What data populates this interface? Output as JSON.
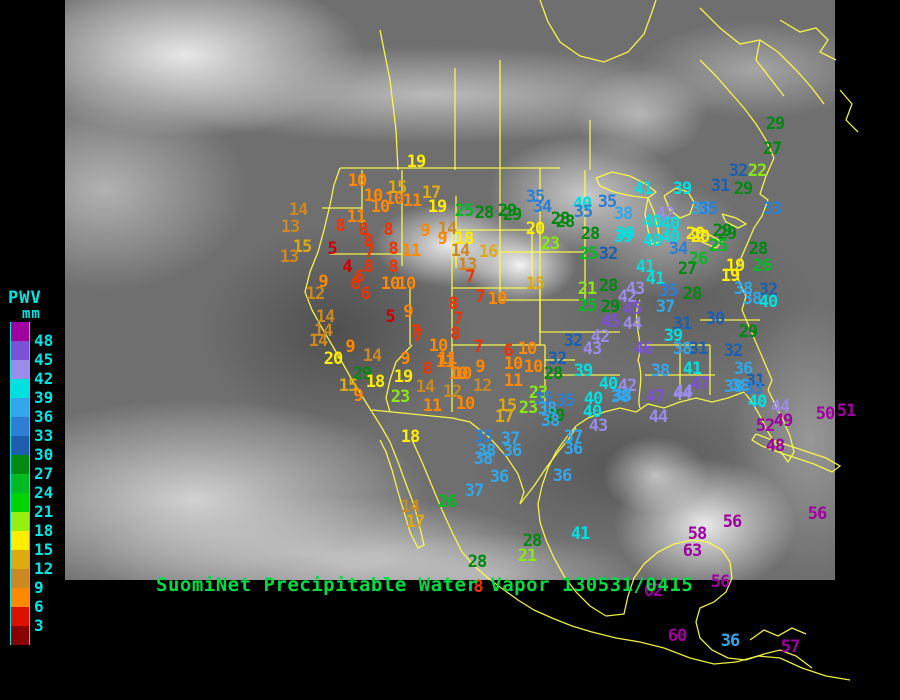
{
  "title": {
    "text": "SuomiNet Precipitable Water Vapor 130531/0415"
  },
  "legend": {
    "heading": "PWV",
    "units": "mm",
    "labels": [
      48,
      45,
      42,
      39,
      36,
      33,
      30,
      27,
      24,
      21,
      18,
      15,
      12,
      9,
      6,
      3
    ],
    "box_colors": [
      "#a000a0",
      "#7b52d4",
      "#9a8ce8",
      "#00e0e0",
      "#33a7ea",
      "#2d7fd4",
      "#1c5fae",
      "#008811",
      "#00bb22",
      "#00d400",
      "#99ee11",
      "#ffee00",
      "#ddaa11",
      "#cc8822",
      "#ff8800",
      "#dd1100",
      "#880000"
    ],
    "text_color": "#00e5e5"
  },
  "scale_stops": [
    {
      "min": 48,
      "color": "#a000a0"
    },
    {
      "min": 45,
      "color": "#7b52d4"
    },
    {
      "min": 42,
      "color": "#9a8ce8"
    },
    {
      "min": 39,
      "color": "#00e0e0"
    },
    {
      "min": 36,
      "color": "#33a7ea"
    },
    {
      "min": 33,
      "color": "#2d7fd4"
    },
    {
      "min": 30,
      "color": "#1c5fae"
    },
    {
      "min": 27,
      "color": "#008811"
    },
    {
      "min": 24,
      "color": "#00bb22"
    },
    {
      "min": 21,
      "color": "#8ae811"
    },
    {
      "min": 18,
      "color": "#ffee00"
    },
    {
      "min": 15,
      "color": "#ddaa11"
    },
    {
      "min": 12,
      "color": "#cc8822"
    },
    {
      "min": 9,
      "color": "#ff8800"
    },
    {
      "min": 6,
      "color": "#ee3300"
    },
    {
      "min": 0,
      "color": "#cc0000"
    }
  ],
  "map_colors": {
    "coastline": "#ffff44",
    "title_green": "#00dd44",
    "background": "#000000"
  },
  "stations": [
    [
      357,
      182,
      10
    ],
    [
      373,
      197,
      10
    ],
    [
      394,
      200,
      10
    ],
    [
      412,
      202,
      11
    ],
    [
      397,
      189,
      15
    ],
    [
      431,
      194,
      17
    ],
    [
      437,
      208,
      19
    ],
    [
      464,
      212,
      25
    ],
    [
      484,
      214,
      28
    ],
    [
      512,
      216,
      29
    ],
    [
      416,
      163,
      19
    ],
    [
      298,
      211,
      14
    ],
    [
      290,
      228,
      13
    ],
    [
      340,
      227,
      8
    ],
    [
      356,
      218,
      11
    ],
    [
      363,
      231,
      8
    ],
    [
      388,
      231,
      8
    ],
    [
      380,
      208,
      10
    ],
    [
      425,
      232,
      9
    ],
    [
      447,
      230,
      14
    ],
    [
      302,
      248,
      15
    ],
    [
      332,
      250,
      5
    ],
    [
      289,
      258,
      13
    ],
    [
      368,
      242,
      8
    ],
    [
      369,
      253,
      7
    ],
    [
      393,
      250,
      8
    ],
    [
      411,
      252,
      11
    ],
    [
      442,
      240,
      9
    ],
    [
      464,
      240,
      18
    ],
    [
      460,
      252,
      14
    ],
    [
      488,
      253,
      16
    ],
    [
      467,
      266,
      13
    ],
    [
      470,
      278,
      7
    ],
    [
      347,
      268,
      4
    ],
    [
      359,
      278,
      6
    ],
    [
      368,
      268,
      8
    ],
    [
      393,
      268,
      8
    ],
    [
      390,
      285,
      10
    ],
    [
      406,
      285,
      10
    ],
    [
      323,
      283,
      9
    ],
    [
      315,
      295,
      12
    ],
    [
      355,
      285,
      6
    ],
    [
      365,
      295,
      6
    ],
    [
      325,
      318,
      14
    ],
    [
      390,
      318,
      5
    ],
    [
      408,
      313,
      9
    ],
    [
      323,
      332,
      14
    ],
    [
      318,
      342,
      14
    ],
    [
      415,
      333,
      7
    ],
    [
      453,
      305,
      8
    ],
    [
      458,
      320,
      7
    ],
    [
      480,
      298,
      7
    ],
    [
      497,
      300,
      10
    ],
    [
      350,
      348,
      9
    ],
    [
      333,
      360,
      20
    ],
    [
      372,
      357,
      14
    ],
    [
      362,
      375,
      29
    ],
    [
      348,
      387,
      15
    ],
    [
      375,
      383,
      18
    ],
    [
      403,
      378,
      19
    ],
    [
      405,
      360,
      9
    ],
    [
      427,
      370,
      8
    ],
    [
      425,
      388,
      14
    ],
    [
      400,
      398,
      23
    ],
    [
      432,
      407,
      11
    ],
    [
      358,
      397,
      9
    ],
    [
      438,
      347,
      10
    ],
    [
      447,
      360,
      11
    ],
    [
      458,
      375,
      10
    ],
    [
      480,
      368,
      9
    ],
    [
      482,
      387,
      12
    ],
    [
      465,
      405,
      10
    ],
    [
      418,
      337,
      7
    ],
    [
      455,
      335,
      8
    ],
    [
      478,
      348,
      7
    ],
    [
      508,
      352,
      6
    ],
    [
      527,
      350,
      10
    ],
    [
      445,
      363,
      11
    ],
    [
      462,
      375,
      10
    ],
    [
      513,
      365,
      10
    ],
    [
      533,
      368,
      10
    ],
    [
      513,
      382,
      11
    ],
    [
      452,
      393,
      12
    ],
    [
      507,
      407,
      15
    ],
    [
      538,
      394,
      23
    ],
    [
      528,
      409,
      23
    ],
    [
      504,
      418,
      17
    ],
    [
      555,
      417,
      29
    ],
    [
      553,
      375,
      28
    ],
    [
      557,
      360,
      32
    ],
    [
      573,
      342,
      32
    ],
    [
      410,
      438,
      18
    ],
    [
      507,
      212,
      29
    ],
    [
      535,
      198,
      35
    ],
    [
      542,
      208,
      34
    ],
    [
      560,
      220,
      28
    ],
    [
      535,
      230,
      20
    ],
    [
      550,
      245,
      23
    ],
    [
      582,
      205,
      40
    ],
    [
      583,
      213,
      35
    ],
    [
      607,
      203,
      35
    ],
    [
      623,
      215,
      38
    ],
    [
      643,
      190,
      41
    ],
    [
      682,
      190,
      39
    ],
    [
      665,
      215,
      42
    ],
    [
      625,
      235,
      39
    ],
    [
      700,
      210,
      36
    ],
    [
      565,
      223,
      28
    ],
    [
      590,
      235,
      28
    ],
    [
      623,
      238,
      39
    ],
    [
      652,
      223,
      40
    ],
    [
      670,
      225,
      40
    ],
    [
      652,
      242,
      40
    ],
    [
      670,
      238,
      40
    ],
    [
      695,
      235,
      20
    ],
    [
      722,
      232,
      29
    ],
    [
      678,
      250,
      34
    ],
    [
      588,
      255,
      25
    ],
    [
      608,
      255,
      32
    ],
    [
      698,
      260,
      26
    ],
    [
      687,
      270,
      27
    ],
    [
      645,
      268,
      41
    ],
    [
      655,
      280,
      41
    ],
    [
      735,
      267,
      19
    ],
    [
      730,
      277,
      19
    ],
    [
      587,
      290,
      21
    ],
    [
      608,
      287,
      28
    ],
    [
      635,
      290,
      43
    ],
    [
      627,
      298,
      42
    ],
    [
      668,
      292,
      35
    ],
    [
      692,
      295,
      28
    ],
    [
      587,
      307,
      25
    ],
    [
      610,
      308,
      29
    ],
    [
      632,
      310,
      45
    ],
    [
      665,
      308,
      37
    ],
    [
      535,
      285,
      15
    ],
    [
      610,
      323,
      45
    ],
    [
      632,
      325,
      44
    ],
    [
      600,
      338,
      42
    ],
    [
      592,
      350,
      43
    ],
    [
      583,
      372,
      39
    ],
    [
      608,
      385,
      40
    ],
    [
      627,
      387,
      42
    ],
    [
      622,
      397,
      38
    ],
    [
      682,
      325,
      31
    ],
    [
      715,
      320,
      30
    ],
    [
      673,
      337,
      39
    ],
    [
      682,
      350,
      38
    ],
    [
      698,
      350,
      31
    ],
    [
      733,
      352,
      32
    ],
    [
      643,
      350,
      46
    ],
    [
      660,
      372,
      38
    ],
    [
      692,
      370,
      41
    ],
    [
      700,
      385,
      47
    ],
    [
      682,
      395,
      44
    ],
    [
      733,
      388,
      38
    ],
    [
      565,
      402,
      35
    ],
    [
      593,
      400,
      40
    ],
    [
      620,
      398,
      38
    ],
    [
      592,
      413,
      40
    ],
    [
      598,
      427,
      43
    ],
    [
      655,
      398,
      47
    ],
    [
      683,
      393,
      44
    ],
    [
      658,
      418,
      44
    ],
    [
      543,
      400,
      35
    ],
    [
      547,
      410,
      38
    ],
    [
      550,
      422,
      38
    ],
    [
      483,
      438,
      35
    ],
    [
      510,
      440,
      37
    ],
    [
      486,
      452,
      38
    ],
    [
      512,
      452,
      36
    ],
    [
      483,
      460,
      38
    ],
    [
      499,
      478,
      36
    ],
    [
      474,
      492,
      37
    ],
    [
      573,
      438,
      37
    ],
    [
      573,
      450,
      36
    ],
    [
      562,
      477,
      36
    ],
    [
      447,
      503,
      26
    ],
    [
      410,
      508,
      14
    ],
    [
      415,
      523,
      17
    ],
    [
      477,
      563,
      28
    ],
    [
      532,
      542,
      28
    ],
    [
      527,
      557,
      21
    ],
    [
      580,
      535,
      41
    ],
    [
      775,
      125,
      29
    ],
    [
      772,
      150,
      27
    ],
    [
      738,
      172,
      32
    ],
    [
      757,
      172,
      22
    ],
    [
      720,
      187,
      31
    ],
    [
      743,
      190,
      29
    ],
    [
      708,
      210,
      35
    ],
    [
      772,
      210,
      33
    ],
    [
      700,
      238,
      20
    ],
    [
      727,
      235,
      29
    ],
    [
      718,
      247,
      25
    ],
    [
      758,
      250,
      28
    ],
    [
      762,
      267,
      26
    ],
    [
      743,
      290,
      38
    ],
    [
      768,
      291,
      32
    ],
    [
      752,
      300,
      38
    ],
    [
      768,
      303,
      40
    ],
    [
      748,
      333,
      29
    ],
    [
      743,
      370,
      36
    ],
    [
      755,
      382,
      31
    ],
    [
      740,
      387,
      38
    ],
    [
      753,
      390,
      33
    ],
    [
      757,
      403,
      40
    ],
    [
      780,
      408,
      44
    ],
    [
      765,
      427,
      52
    ],
    [
      783,
      422,
      49
    ],
    [
      825,
      415,
      50
    ],
    [
      775,
      447,
      48
    ],
    [
      846,
      412,
      51
    ],
    [
      732,
      523,
      56
    ],
    [
      817,
      515,
      56
    ],
    [
      697,
      535,
      58
    ],
    [
      692,
      552,
      63
    ],
    [
      653,
      592,
      62
    ],
    [
      677,
      637,
      60
    ],
    [
      730,
      642,
      36
    ],
    [
      790,
      648,
      57
    ],
    [
      720,
      583,
      56
    ],
    [
      478,
      588,
      8
    ]
  ]
}
